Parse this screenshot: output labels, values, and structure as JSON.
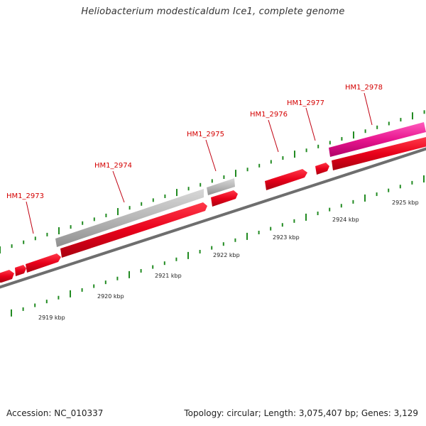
{
  "title": "Heliobacterium modesticaldum Ice1, complete genome",
  "footer": {
    "accession": "Accession: NC_010337",
    "summary": "Topology: circular; Length: 3,075,407 bp; Genes: 3,129"
  },
  "colors": {
    "forward_gene": "#e8001a",
    "reverse_gene": "#b7b7b7",
    "pink_gene": "#e8168f",
    "backbone": "#7a7a7a",
    "tick": "#228b22",
    "label": "#d40000"
  },
  "gene_labels": [
    "HM1_2973",
    "HM1_2974",
    "HM1_2975",
    "HM1_2976",
    "HM1_2977",
    "HM1_2978"
  ],
  "kbp_labels": [
    "2919 kbp",
    "2920 kbp",
    "2921 kbp",
    "2922 kbp",
    "2923 kbp",
    "2924 kbp",
    "2925 kbp"
  ]
}
